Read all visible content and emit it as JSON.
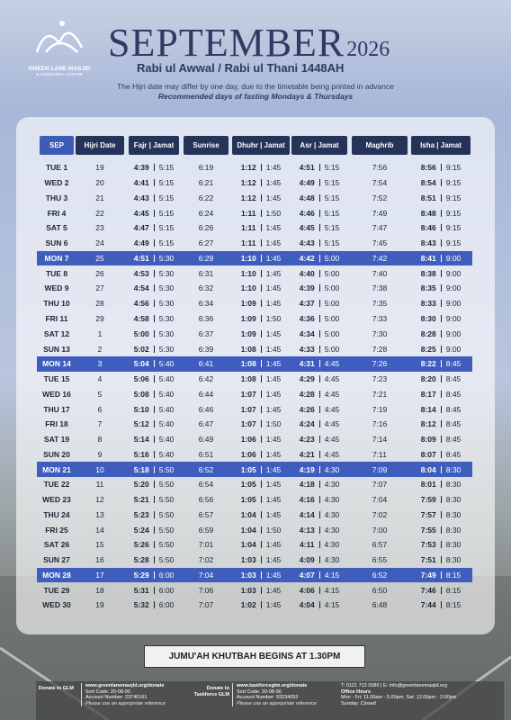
{
  "logo": {
    "name": "GREEN LANE MASJID",
    "subtitle": "& COMMUNITY CENTRE"
  },
  "header": {
    "month": "SEPTEMBER",
    "year": "2026",
    "hijri_months": "Rabi ul Awwal / Rabi ul Thani 1448AH",
    "note": "The Hijri date may differ by one day, due to the timetable being printed in advance",
    "fasting": "Recommended days of fasting Mondays & Thursdays"
  },
  "table": {
    "columns": [
      "SEP",
      "Hijri Date",
      "Fajr | Jamat",
      "Sunrise",
      "Dhuhr | Jamat",
      "Asr | Jamat",
      "Maghrib",
      "Isha | Jamat"
    ],
    "highlighted_rows": [
      6,
      13,
      20,
      27
    ],
    "rows": [
      [
        "TUE 1",
        19,
        [
          "4:39",
          "5:15"
        ],
        "6:19",
        [
          "1:12",
          "1:45"
        ],
        [
          "4:51",
          "5:15"
        ],
        "7:56",
        [
          "8:56",
          "9:15"
        ]
      ],
      [
        "WED 2",
        20,
        [
          "4:41",
          "5:15"
        ],
        "6:21",
        [
          "1:12",
          "1:45"
        ],
        [
          "4:49",
          "5:15"
        ],
        "7:54",
        [
          "8:54",
          "9:15"
        ]
      ],
      [
        "THU 3",
        21,
        [
          "4:43",
          "5:15"
        ],
        "6:22",
        [
          "1:12",
          "1:45"
        ],
        [
          "4:48",
          "5:15"
        ],
        "7:52",
        [
          "8:51",
          "9:15"
        ]
      ],
      [
        "FRI 4",
        22,
        [
          "4:45",
          "5:15"
        ],
        "6:24",
        [
          "1:11",
          "1:50"
        ],
        [
          "4:46",
          "5:15"
        ],
        "7:49",
        [
          "8:48",
          "9:15"
        ]
      ],
      [
        "SAT 5",
        23,
        [
          "4:47",
          "5:15"
        ],
        "6:26",
        [
          "1:11",
          "1:45"
        ],
        [
          "4:45",
          "5:15"
        ],
        "7:47",
        [
          "8:46",
          "9:15"
        ]
      ],
      [
        "SUN 6",
        24,
        [
          "4:49",
          "5:15"
        ],
        "6:27",
        [
          "1:11",
          "1:45"
        ],
        [
          "4:43",
          "5:15"
        ],
        "7:45",
        [
          "8:43",
          "9:15"
        ]
      ],
      [
        "MON 7",
        25,
        [
          "4:51",
          "5:30"
        ],
        "6:29",
        [
          "1:10",
          "1:45"
        ],
        [
          "4:42",
          "5:00"
        ],
        "7:42",
        [
          "8:41",
          "9:00"
        ]
      ],
      [
        "TUE 8",
        26,
        [
          "4:53",
          "5:30"
        ],
        "6:31",
        [
          "1:10",
          "1:45"
        ],
        [
          "4:40",
          "5:00"
        ],
        "7:40",
        [
          "8:38",
          "9:00"
        ]
      ],
      [
        "WED 9",
        27,
        [
          "4:54",
          "5:30"
        ],
        "6:32",
        [
          "1:10",
          "1:45"
        ],
        [
          "4:39",
          "5:00"
        ],
        "7:38",
        [
          "8:35",
          "9:00"
        ]
      ],
      [
        "THU 10",
        28,
        [
          "4:56",
          "5:30"
        ],
        "6:34",
        [
          "1:09",
          "1:45"
        ],
        [
          "4:37",
          "5:00"
        ],
        "7:35",
        [
          "8:33",
          "9:00"
        ]
      ],
      [
        "FRI 11",
        29,
        [
          "4:58",
          "5:30"
        ],
        "6:36",
        [
          "1:09",
          "1:50"
        ],
        [
          "4:36",
          "5:00"
        ],
        "7:33",
        [
          "8:30",
          "9:00"
        ]
      ],
      [
        "SAT 12",
        1,
        [
          "5:00",
          "5:30"
        ],
        "6:37",
        [
          "1:09",
          "1:45"
        ],
        [
          "4:34",
          "5:00"
        ],
        "7:30",
        [
          "8:28",
          "9:00"
        ]
      ],
      [
        "SUN 13",
        2,
        [
          "5:02",
          "5:30"
        ],
        "6:39",
        [
          "1:08",
          "1:45"
        ],
        [
          "4:33",
          "5:00"
        ],
        "7:28",
        [
          "8:25",
          "9:00"
        ]
      ],
      [
        "MON 14",
        3,
        [
          "5:04",
          "5:40"
        ],
        "6:41",
        [
          "1:08",
          "1:45"
        ],
        [
          "4:31",
          "4:45"
        ],
        "7:26",
        [
          "8:22",
          "8:45"
        ]
      ],
      [
        "TUE 15",
        4,
        [
          "5:06",
          "5:40"
        ],
        "6:42",
        [
          "1:08",
          "1:45"
        ],
        [
          "4:29",
          "4:45"
        ],
        "7:23",
        [
          "8:20",
          "8:45"
        ]
      ],
      [
        "WED 16",
        5,
        [
          "5:08",
          "5:40"
        ],
        "6:44",
        [
          "1:07",
          "1:45"
        ],
        [
          "4:28",
          "4:45"
        ],
        "7:21",
        [
          "8:17",
          "8:45"
        ]
      ],
      [
        "THU 17",
        6,
        [
          "5:10",
          "5:40"
        ],
        "6:46",
        [
          "1:07",
          "1:45"
        ],
        [
          "4:26",
          "4:45"
        ],
        "7:19",
        [
          "8:14",
          "8:45"
        ]
      ],
      [
        "FRI 18",
        7,
        [
          "5:12",
          "5:40"
        ],
        "6:47",
        [
          "1:07",
          "1:50"
        ],
        [
          "4:24",
          "4:45"
        ],
        "7:16",
        [
          "8:12",
          "8:45"
        ]
      ],
      [
        "SAT 19",
        8,
        [
          "5:14",
          "5:40"
        ],
        "6:49",
        [
          "1:06",
          "1:45"
        ],
        [
          "4:23",
          "4:45"
        ],
        "7:14",
        [
          "8:09",
          "8:45"
        ]
      ],
      [
        "SUN 20",
        9,
        [
          "5:16",
          "5:40"
        ],
        "6:51",
        [
          "1:06",
          "1:45"
        ],
        [
          "4:21",
          "4:45"
        ],
        "7:11",
        [
          "8:07",
          "8:45"
        ]
      ],
      [
        "MON 21",
        10,
        [
          "5:18",
          "5:50"
        ],
        "6:52",
        [
          "1:05",
          "1:45"
        ],
        [
          "4:19",
          "4:30"
        ],
        "7:09",
        [
          "8:04",
          "8:30"
        ]
      ],
      [
        "TUE 22",
        11,
        [
          "5:20",
          "5:50"
        ],
        "6:54",
        [
          "1:05",
          "1:45"
        ],
        [
          "4:18",
          "4:30"
        ],
        "7:07",
        [
          "8:01",
          "8:30"
        ]
      ],
      [
        "WED 23",
        12,
        [
          "5:21",
          "5:50"
        ],
        "6:56",
        [
          "1:05",
          "1:45"
        ],
        [
          "4:16",
          "4:30"
        ],
        "7:04",
        [
          "7:59",
          "8:30"
        ]
      ],
      [
        "THU 24",
        13,
        [
          "5:23",
          "5:50"
        ],
        "6:57",
        [
          "1:04",
          "1:45"
        ],
        [
          "4:14",
          "4:30"
        ],
        "7:02",
        [
          "7:57",
          "8:30"
        ]
      ],
      [
        "FRI 25",
        14,
        [
          "5:24",
          "5:50"
        ],
        "6:59",
        [
          "1:04",
          "1:50"
        ],
        [
          "4:13",
          "4:30"
        ],
        "7:00",
        [
          "7:55",
          "8:30"
        ]
      ],
      [
        "SAT 26",
        15,
        [
          "5:26",
          "5:50"
        ],
        "7:01",
        [
          "1:04",
          "1:45"
        ],
        [
          "4:11",
          "4:30"
        ],
        "6:57",
        [
          "7:53",
          "8:30"
        ]
      ],
      [
        "SUN 27",
        16,
        [
          "5:28",
          "5:50"
        ],
        "7:02",
        [
          "1:03",
          "1:45"
        ],
        [
          "4:09",
          "4:30"
        ],
        "6:55",
        [
          "7:51",
          "8:30"
        ]
      ],
      [
        "MON 28",
        17,
        [
          "5:29",
          "6:00"
        ],
        "7:04",
        [
          "1:03",
          "1:45"
        ],
        [
          "4:07",
          "4:15"
        ],
        "6:52",
        [
          "7:49",
          "8:15"
        ]
      ],
      [
        "TUE 29",
        18,
        [
          "5:31",
          "6:00"
        ],
        "7:06",
        [
          "1:03",
          "1:45"
        ],
        [
          "4:06",
          "4:15"
        ],
        "6:50",
        [
          "7:46",
          "8:15"
        ]
      ],
      [
        "WED 30",
        19,
        [
          "5:32",
          "6:00"
        ],
        "7:07",
        [
          "1:02",
          "1:45"
        ],
        [
          "4:04",
          "4:15"
        ],
        "6:48",
        [
          "7:44",
          "8:15"
        ]
      ]
    ]
  },
  "banner": "JUMU'AH KHUTBAH BEGINS AT 1.30PM",
  "footer": {
    "donate1": {
      "label": "Donate to GLM",
      "url": "www.greenlanemasjid.org/donate",
      "sort": "Sort Code: 20-08-90",
      "account": "Account Number: 23740161",
      "ref": "Please use an appropriate reference"
    },
    "donate2": {
      "label": "Donate to Taskforce GLM",
      "url": "www.taskforceglm.org/donate",
      "sort": "Sort Code: 20-08-90",
      "account": "Account Number: 93234053",
      "ref": "Please use an appropriate reference"
    },
    "contact": "T: 0121 713 0080 | E: info@greenlanemasjid.org",
    "hours_title": "Office Hours",
    "hours": "Mon - Fri: 11.00am - 5.00pm; Sat: 12.00pm - 2.00pm",
    "sunday": "Sunday: Closed"
  }
}
